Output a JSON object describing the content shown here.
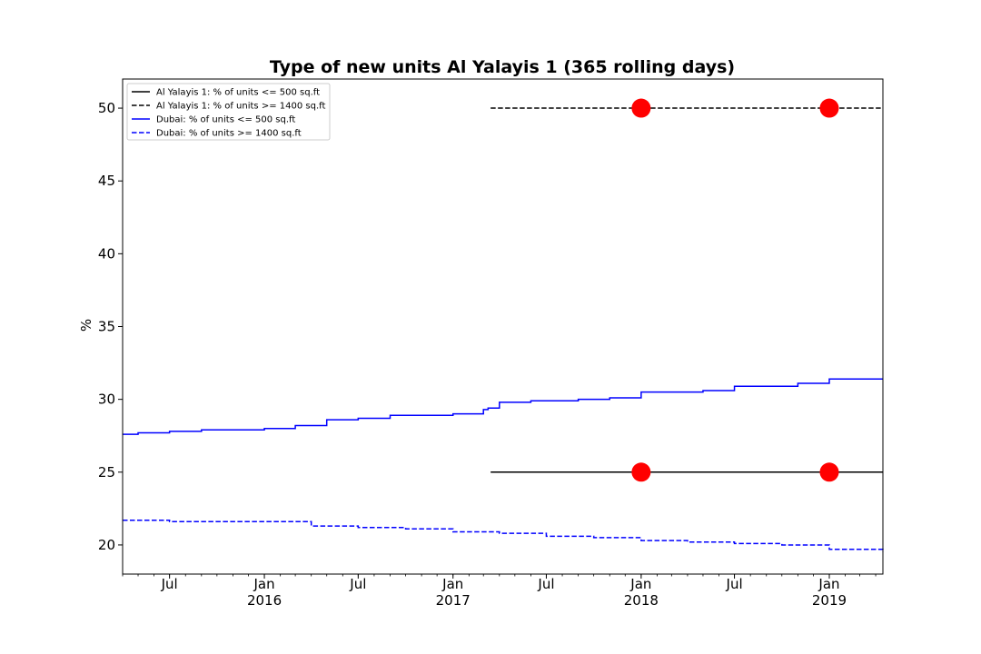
{
  "chart_data": {
    "type": "line",
    "title": "Type of new units Al Yalayis 1 (365 rolling days)",
    "xlabel": "",
    "ylabel": "%",
    "ylim": [
      18,
      52
    ],
    "xlim": [
      "2015-04-01",
      "2019-04-15"
    ],
    "grid": false,
    "legend_position": "top-left",
    "y_ticks": [
      20,
      25,
      30,
      35,
      40,
      45,
      50
    ],
    "x_ticks": [
      {
        "date": "2015-07-01",
        "label": "Jul",
        "year": ""
      },
      {
        "date": "2016-01-01",
        "label": "Jan",
        "year": "2016"
      },
      {
        "date": "2016-07-01",
        "label": "Jul",
        "year": ""
      },
      {
        "date": "2017-01-01",
        "label": "Jan",
        "year": "2017"
      },
      {
        "date": "2017-07-01",
        "label": "Jul",
        "year": ""
      },
      {
        "date": "2018-01-01",
        "label": "Jan",
        "year": "2018"
      },
      {
        "date": "2018-07-01",
        "label": "Jul",
        "year": ""
      },
      {
        "date": "2019-01-01",
        "label": "Jan",
        "year": "2019"
      }
    ],
    "series": [
      {
        "name": "Al Yalayis 1: % of units <= 500 sq.ft",
        "color": "#000000",
        "style": "solid",
        "x": [
          "2017-03-15",
          "2019-04-15"
        ],
        "y": [
          25,
          25
        ],
        "markers": {
          "x": [
            "2018-01-01",
            "2019-01-01"
          ],
          "y": [
            25,
            25
          ],
          "color": "#ff0000"
        }
      },
      {
        "name": "Al Yalayis 1: % of units >= 1400 sq.ft",
        "color": "#000000",
        "style": "dashed",
        "x": [
          "2017-03-15",
          "2019-04-15"
        ],
        "y": [
          50,
          50
        ],
        "markers": {
          "x": [
            "2018-01-01",
            "2019-01-01"
          ],
          "y": [
            50,
            50
          ],
          "color": "#ff0000"
        }
      },
      {
        "name": "Dubai: % of units <= 500 sq.ft",
        "color": "#0000ff",
        "style": "solid",
        "x": [
          "2015-04-01",
          "2015-05-01",
          "2015-07-01",
          "2015-09-01",
          "2015-11-01",
          "2016-01-01",
          "2016-03-01",
          "2016-05-01",
          "2016-07-01",
          "2016-09-01",
          "2016-11-01",
          "2017-01-01",
          "2017-02-20",
          "2017-03-01",
          "2017-03-10",
          "2017-04-01",
          "2017-06-01",
          "2017-09-01",
          "2017-11-01",
          "2018-01-01",
          "2018-05-01",
          "2018-07-01",
          "2018-11-01",
          "2019-01-01",
          "2019-04-15"
        ],
        "y": [
          27.6,
          27.7,
          27.8,
          27.9,
          27.9,
          28.0,
          28.2,
          28.6,
          28.7,
          28.9,
          28.9,
          29.0,
          29.0,
          29.3,
          29.4,
          29.8,
          29.9,
          30.0,
          30.1,
          30.5,
          30.6,
          30.9,
          31.1,
          31.4,
          31.4
        ]
      },
      {
        "name": "Dubai: % of units >= 1400 sq.ft",
        "color": "#0000ff",
        "style": "dashed",
        "x": [
          "2015-04-01",
          "2015-07-01",
          "2015-10-01",
          "2016-01-01",
          "2016-04-01",
          "2016-07-01",
          "2016-10-01",
          "2017-01-01",
          "2017-04-01",
          "2017-07-01",
          "2017-10-01",
          "2018-01-01",
          "2018-04-01",
          "2018-07-01",
          "2018-10-01",
          "2019-01-01",
          "2019-04-15"
        ],
        "y": [
          21.7,
          21.6,
          21.6,
          21.6,
          21.3,
          21.2,
          21.1,
          20.9,
          20.8,
          20.6,
          20.5,
          20.3,
          20.2,
          20.1,
          20.0,
          19.7,
          19.5
        ]
      }
    ]
  }
}
